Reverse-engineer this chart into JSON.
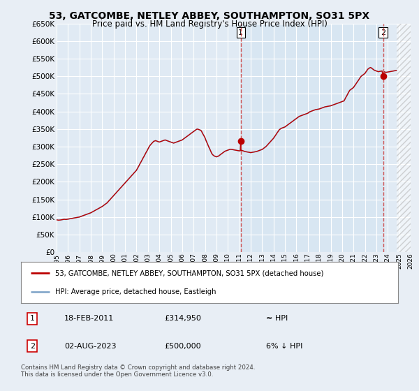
{
  "title": "53, GATCOMBE, NETLEY ABBEY, SOUTHAMPTON, SO31 5PX",
  "subtitle": "Price paid vs. HM Land Registry's House Price Index (HPI)",
  "legend_line1": "53, GATCOMBE, NETLEY ABBEY, SOUTHAMPTON, SO31 5PX (detached house)",
  "legend_line2": "HPI: Average price, detached house, Eastleigh",
  "annotation1_label": "1",
  "annotation1_date": "18-FEB-2011",
  "annotation1_price": "£314,950",
  "annotation1_hpi": "≈ HPI",
  "annotation2_label": "2",
  "annotation2_date": "02-AUG-2023",
  "annotation2_price": "£500,000",
  "annotation2_hpi": "6% ↓ HPI",
  "footnote": "Contains HM Land Registry data © Crown copyright and database right 2024.\nThis data is licensed under the Open Government Licence v3.0.",
  "ylim_min": 0,
  "ylim_max": 650000,
  "yticks": [
    0,
    50000,
    100000,
    150000,
    200000,
    250000,
    300000,
    350000,
    400000,
    450000,
    500000,
    550000,
    600000,
    650000
  ],
  "bg_color": "#e8eef5",
  "plot_bg_color": "#e0eaf4",
  "plot_bg_color2": "#d0dff0",
  "grid_color": "#c8d8e8",
  "red_line_color": "#bb0000",
  "blue_line_color": "#88aacc",
  "vline_color": "#cc4444",
  "marker1_x": 2011.13,
  "marker1_y": 314950,
  "marker2_x": 2023.59,
  "marker2_y": 500000,
  "xmin": 1995,
  "xmax": 2026,
  "hpi_data": [
    [
      1995.0,
      92000
    ],
    [
      1995.08,
      91500
    ],
    [
      1995.17,
      91000
    ],
    [
      1995.25,
      91200
    ],
    [
      1995.33,
      91500
    ],
    [
      1995.42,
      92000
    ],
    [
      1995.5,
      92500
    ],
    [
      1995.58,
      93000
    ],
    [
      1995.67,
      93500
    ],
    [
      1995.75,
      93200
    ],
    [
      1995.83,
      93000
    ],
    [
      1995.92,
      93500
    ],
    [
      1996.0,
      94000
    ],
    [
      1996.08,
      94500
    ],
    [
      1996.17,
      95000
    ],
    [
      1996.25,
      95500
    ],
    [
      1996.33,
      96000
    ],
    [
      1996.42,
      96500
    ],
    [
      1996.5,
      97000
    ],
    [
      1996.58,
      97500
    ],
    [
      1996.67,
      98000
    ],
    [
      1996.75,
      98500
    ],
    [
      1996.83,
      99000
    ],
    [
      1996.92,
      99500
    ],
    [
      1997.0,
      100000
    ],
    [
      1997.08,
      101000
    ],
    [
      1997.17,
      102000
    ],
    [
      1997.25,
      103000
    ],
    [
      1997.33,
      104000
    ],
    [
      1997.42,
      105000
    ],
    [
      1997.5,
      106000
    ],
    [
      1997.58,
      107000
    ],
    [
      1997.67,
      108000
    ],
    [
      1997.75,
      109000
    ],
    [
      1997.83,
      110000
    ],
    [
      1997.92,
      111000
    ],
    [
      1998.0,
      112000
    ],
    [
      1998.08,
      113500
    ],
    [
      1998.17,
      115000
    ],
    [
      1998.25,
      116500
    ],
    [
      1998.33,
      118000
    ],
    [
      1998.42,
      119500
    ],
    [
      1998.5,
      121000
    ],
    [
      1998.58,
      122500
    ],
    [
      1998.67,
      124000
    ],
    [
      1998.75,
      125500
    ],
    [
      1998.83,
      127000
    ],
    [
      1998.92,
      128500
    ],
    [
      1999.0,
      130000
    ],
    [
      1999.08,
      132000
    ],
    [
      1999.17,
      134000
    ],
    [
      1999.25,
      136000
    ],
    [
      1999.33,
      138000
    ],
    [
      1999.42,
      140000
    ],
    [
      1999.5,
      143000
    ],
    [
      1999.58,
      146000
    ],
    [
      1999.67,
      149000
    ],
    [
      1999.75,
      152000
    ],
    [
      1999.83,
      155000
    ],
    [
      1999.92,
      158000
    ],
    [
      2000.0,
      161000
    ],
    [
      2000.08,
      164000
    ],
    [
      2000.17,
      167000
    ],
    [
      2000.25,
      170000
    ],
    [
      2000.33,
      173000
    ],
    [
      2000.42,
      176000
    ],
    [
      2000.5,
      179000
    ],
    [
      2000.58,
      182000
    ],
    [
      2000.67,
      185000
    ],
    [
      2000.75,
      188000
    ],
    [
      2000.83,
      191000
    ],
    [
      2000.92,
      194000
    ],
    [
      2001.0,
      197000
    ],
    [
      2001.08,
      200000
    ],
    [
      2001.17,
      203000
    ],
    [
      2001.25,
      206000
    ],
    [
      2001.33,
      209000
    ],
    [
      2001.42,
      212000
    ],
    [
      2001.5,
      215000
    ],
    [
      2001.58,
      218000
    ],
    [
      2001.67,
      221000
    ],
    [
      2001.75,
      224000
    ],
    [
      2001.83,
      227000
    ],
    [
      2001.92,
      230000
    ],
    [
      2002.0,
      233000
    ],
    [
      2002.08,
      238000
    ],
    [
      2002.17,
      243000
    ],
    [
      2002.25,
      248000
    ],
    [
      2002.33,
      253000
    ],
    [
      2002.42,
      258000
    ],
    [
      2002.5,
      263000
    ],
    [
      2002.58,
      268000
    ],
    [
      2002.67,
      273000
    ],
    [
      2002.75,
      278000
    ],
    [
      2002.83,
      283000
    ],
    [
      2002.92,
      288000
    ],
    [
      2003.0,
      293000
    ],
    [
      2003.08,
      298000
    ],
    [
      2003.17,
      303000
    ],
    [
      2003.25,
      306000
    ],
    [
      2003.33,
      309000
    ],
    [
      2003.42,
      312000
    ],
    [
      2003.5,
      315000
    ],
    [
      2003.58,
      316000
    ],
    [
      2003.67,
      317000
    ],
    [
      2003.75,
      316000
    ],
    [
      2003.83,
      315000
    ],
    [
      2003.92,
      314000
    ],
    [
      2004.0,
      313000
    ],
    [
      2004.08,
      314000
    ],
    [
      2004.17,
      315000
    ],
    [
      2004.25,
      316000
    ],
    [
      2004.33,
      317000
    ],
    [
      2004.42,
      318000
    ],
    [
      2004.5,
      319000
    ],
    [
      2004.58,
      318000
    ],
    [
      2004.67,
      317000
    ],
    [
      2004.75,
      316000
    ],
    [
      2004.83,
      315000
    ],
    [
      2004.92,
      314000
    ],
    [
      2005.0,
      313000
    ],
    [
      2005.08,
      312000
    ],
    [
      2005.17,
      311000
    ],
    [
      2005.25,
      310000
    ],
    [
      2005.33,
      311000
    ],
    [
      2005.42,
      312000
    ],
    [
      2005.5,
      313000
    ],
    [
      2005.58,
      314000
    ],
    [
      2005.67,
      315000
    ],
    [
      2005.75,
      316000
    ],
    [
      2005.83,
      317000
    ],
    [
      2005.92,
      318000
    ],
    [
      2006.0,
      319000
    ],
    [
      2006.08,
      321000
    ],
    [
      2006.17,
      323000
    ],
    [
      2006.25,
      325000
    ],
    [
      2006.33,
      327000
    ],
    [
      2006.42,
      329000
    ],
    [
      2006.5,
      331000
    ],
    [
      2006.58,
      333000
    ],
    [
      2006.67,
      335000
    ],
    [
      2006.75,
      337000
    ],
    [
      2006.83,
      339000
    ],
    [
      2006.92,
      341000
    ],
    [
      2007.0,
      343000
    ],
    [
      2007.08,
      345000
    ],
    [
      2007.17,
      347000
    ],
    [
      2007.25,
      349000
    ],
    [
      2007.33,
      350000
    ],
    [
      2007.42,
      349000
    ],
    [
      2007.5,
      348000
    ],
    [
      2007.58,
      347000
    ],
    [
      2007.67,
      345000
    ],
    [
      2007.75,
      340000
    ],
    [
      2007.83,
      335000
    ],
    [
      2007.92,
      330000
    ],
    [
      2008.0,
      325000
    ],
    [
      2008.08,
      318000
    ],
    [
      2008.17,
      311000
    ],
    [
      2008.25,
      305000
    ],
    [
      2008.33,
      299000
    ],
    [
      2008.42,
      293000
    ],
    [
      2008.5,
      287000
    ],
    [
      2008.58,
      281000
    ],
    [
      2008.67,
      277000
    ],
    [
      2008.75,
      275000
    ],
    [
      2008.83,
      273000
    ],
    [
      2008.92,
      272000
    ],
    [
      2009.0,
      271000
    ],
    [
      2009.08,
      272000
    ],
    [
      2009.17,
      273000
    ],
    [
      2009.25,
      275000
    ],
    [
      2009.33,
      277000
    ],
    [
      2009.42,
      279000
    ],
    [
      2009.5,
      281000
    ],
    [
      2009.58,
      283000
    ],
    [
      2009.67,
      285000
    ],
    [
      2009.75,
      287000
    ],
    [
      2009.83,
      288000
    ],
    [
      2009.92,
      289000
    ],
    [
      2010.0,
      290000
    ],
    [
      2010.08,
      291000
    ],
    [
      2010.17,
      292000
    ],
    [
      2010.25,
      292500
    ],
    [
      2010.33,
      292000
    ],
    [
      2010.42,
      291500
    ],
    [
      2010.5,
      291000
    ],
    [
      2010.58,
      290500
    ],
    [
      2010.67,
      290000
    ],
    [
      2010.75,
      289500
    ],
    [
      2010.83,
      289000
    ],
    [
      2010.92,
      288500
    ],
    [
      2011.0,
      288000
    ],
    [
      2011.08,
      288200
    ],
    [
      2011.13,
      314950
    ],
    [
      2011.17,
      288500
    ],
    [
      2011.25,
      289000
    ],
    [
      2011.33,
      288000
    ],
    [
      2011.42,
      287000
    ],
    [
      2011.5,
      286000
    ],
    [
      2011.58,
      285500
    ],
    [
      2011.67,
      285000
    ],
    [
      2011.75,
      284500
    ],
    [
      2011.83,
      284000
    ],
    [
      2011.92,
      283500
    ],
    [
      2012.0,
      283000
    ],
    [
      2012.08,
      283500
    ],
    [
      2012.17,
      284000
    ],
    [
      2012.25,
      284500
    ],
    [
      2012.33,
      285000
    ],
    [
      2012.42,
      285500
    ],
    [
      2012.5,
      286000
    ],
    [
      2012.58,
      287000
    ],
    [
      2012.67,
      288000
    ],
    [
      2012.75,
      289000
    ],
    [
      2012.83,
      290000
    ],
    [
      2012.92,
      291000
    ],
    [
      2013.0,
      292000
    ],
    [
      2013.08,
      294000
    ],
    [
      2013.17,
      296000
    ],
    [
      2013.25,
      298000
    ],
    [
      2013.33,
      300000
    ],
    [
      2013.42,
      303000
    ],
    [
      2013.5,
      306000
    ],
    [
      2013.58,
      309000
    ],
    [
      2013.67,
      312000
    ],
    [
      2013.75,
      315000
    ],
    [
      2013.83,
      318000
    ],
    [
      2013.92,
      321000
    ],
    [
      2014.0,
      324000
    ],
    [
      2014.08,
      328000
    ],
    [
      2014.17,
      332000
    ],
    [
      2014.25,
      336000
    ],
    [
      2014.33,
      340000
    ],
    [
      2014.42,
      344000
    ],
    [
      2014.5,
      348000
    ],
    [
      2014.58,
      350000
    ],
    [
      2014.67,
      352000
    ],
    [
      2014.75,
      353000
    ],
    [
      2014.83,
      354000
    ],
    [
      2014.92,
      355000
    ],
    [
      2015.0,
      356000
    ],
    [
      2015.08,
      358000
    ],
    [
      2015.17,
      360000
    ],
    [
      2015.25,
      362000
    ],
    [
      2015.33,
      364000
    ],
    [
      2015.42,
      366000
    ],
    [
      2015.5,
      368000
    ],
    [
      2015.58,
      370000
    ],
    [
      2015.67,
      372000
    ],
    [
      2015.75,
      374000
    ],
    [
      2015.83,
      376000
    ],
    [
      2015.92,
      378000
    ],
    [
      2016.0,
      380000
    ],
    [
      2016.08,
      382000
    ],
    [
      2016.17,
      384000
    ],
    [
      2016.25,
      386000
    ],
    [
      2016.33,
      387000
    ],
    [
      2016.42,
      388000
    ],
    [
      2016.5,
      389000
    ],
    [
      2016.58,
      390000
    ],
    [
      2016.67,
      391000
    ],
    [
      2016.75,
      392000
    ],
    [
      2016.83,
      393000
    ],
    [
      2016.92,
      394000
    ],
    [
      2017.0,
      395000
    ],
    [
      2017.08,
      397000
    ],
    [
      2017.17,
      399000
    ],
    [
      2017.25,
      400000
    ],
    [
      2017.33,
      401000
    ],
    [
      2017.42,
      402000
    ],
    [
      2017.5,
      403000
    ],
    [
      2017.58,
      404000
    ],
    [
      2017.67,
      405000
    ],
    [
      2017.75,
      405500
    ],
    [
      2017.83,
      406000
    ],
    [
      2017.92,
      406500
    ],
    [
      2018.0,
      407000
    ],
    [
      2018.08,
      408000
    ],
    [
      2018.17,
      409000
    ],
    [
      2018.25,
      410000
    ],
    [
      2018.33,
      411000
    ],
    [
      2018.42,
      412000
    ],
    [
      2018.5,
      413000
    ],
    [
      2018.58,
      413500
    ],
    [
      2018.67,
      414000
    ],
    [
      2018.75,
      414500
    ],
    [
      2018.83,
      415000
    ],
    [
      2018.92,
      415500
    ],
    [
      2019.0,
      416000
    ],
    [
      2019.08,
      417000
    ],
    [
      2019.17,
      418000
    ],
    [
      2019.25,
      419000
    ],
    [
      2019.33,
      420000
    ],
    [
      2019.42,
      421000
    ],
    [
      2019.5,
      422000
    ],
    [
      2019.58,
      423000
    ],
    [
      2019.67,
      424000
    ],
    [
      2019.75,
      425000
    ],
    [
      2019.83,
      426000
    ],
    [
      2019.92,
      427000
    ],
    [
      2020.0,
      428000
    ],
    [
      2020.08,
      429000
    ],
    [
      2020.17,
      430000
    ],
    [
      2020.25,
      435000
    ],
    [
      2020.33,
      440000
    ],
    [
      2020.42,
      445000
    ],
    [
      2020.5,
      450000
    ],
    [
      2020.58,
      455000
    ],
    [
      2020.67,
      460000
    ],
    [
      2020.75,
      462000
    ],
    [
      2020.83,
      464000
    ],
    [
      2020.92,
      466000
    ],
    [
      2021.0,
      468000
    ],
    [
      2021.08,
      472000
    ],
    [
      2021.17,
      476000
    ],
    [
      2021.25,
      480000
    ],
    [
      2021.33,
      484000
    ],
    [
      2021.42,
      488000
    ],
    [
      2021.5,
      492000
    ],
    [
      2021.58,
      496000
    ],
    [
      2021.67,
      500000
    ],
    [
      2021.75,
      502000
    ],
    [
      2021.83,
      504000
    ],
    [
      2021.92,
      506000
    ],
    [
      2022.0,
      508000
    ],
    [
      2022.08,
      512000
    ],
    [
      2022.17,
      516000
    ],
    [
      2022.25,
      520000
    ],
    [
      2022.33,
      522000
    ],
    [
      2022.42,
      524000
    ],
    [
      2022.5,
      525000
    ],
    [
      2022.58,
      523000
    ],
    [
      2022.67,
      521000
    ],
    [
      2022.75,
      519000
    ],
    [
      2022.83,
      517000
    ],
    [
      2022.92,
      516000
    ],
    [
      2023.0,
      515000
    ],
    [
      2023.08,
      514000
    ],
    [
      2023.17,
      513000
    ],
    [
      2023.25,
      513500
    ],
    [
      2023.33,
      514000
    ],
    [
      2023.42,
      514500
    ],
    [
      2023.5,
      515000
    ],
    [
      2023.59,
      500000
    ],
    [
      2023.67,
      513000
    ],
    [
      2023.75,
      512000
    ],
    [
      2023.83,
      511000
    ],
    [
      2023.92,
      511500
    ],
    [
      2024.0,
      512000
    ],
    [
      2024.08,
      512500
    ],
    [
      2024.17,
      513000
    ],
    [
      2024.25,
      513500
    ],
    [
      2024.33,
      514000
    ],
    [
      2024.42,
      514500
    ],
    [
      2024.5,
      515000
    ],
    [
      2024.58,
      515500
    ],
    [
      2024.67,
      516000
    ],
    [
      2024.75,
      516500
    ]
  ],
  "last_data_x": 2024.75
}
